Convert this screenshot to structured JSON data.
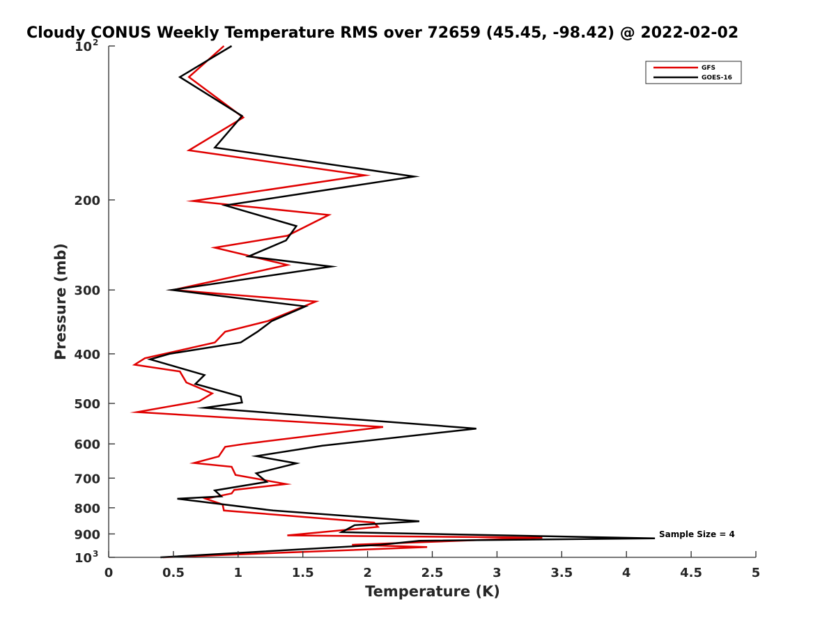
{
  "chart_data": {
    "type": "line",
    "title": "Cloudy CONUS Weekly Temperature RMS over 72659 (45.45, -98.42) @ 2022-02-02",
    "xlabel": "Temperature (K)",
    "ylabel": "Pressure (mb)",
    "xlim": [
      0,
      5
    ],
    "ylim": [
      100,
      1000
    ],
    "y_scale": "log",
    "y_reversed": true,
    "grid": false,
    "legend_position": "top-right",
    "x_ticks": [
      "0",
      "0.5",
      "1",
      "1.5",
      "2",
      "2.5",
      "3",
      "3.5",
      "4",
      "4.5",
      "5"
    ],
    "x_tick_values": [
      0,
      0.5,
      1,
      1.5,
      2,
      2.5,
      3,
      3.5,
      4,
      4.5,
      5
    ],
    "y_tick_values": [
      100,
      200,
      300,
      400,
      500,
      600,
      700,
      800,
      900,
      1000
    ],
    "y_ticks": [
      {
        "base": "10",
        "exp": "2"
      },
      {
        "base": "200",
        "exp": ""
      },
      {
        "base": "300",
        "exp": ""
      },
      {
        "base": "400",
        "exp": ""
      },
      {
        "base": "500",
        "exp": ""
      },
      {
        "base": "600",
        "exp": ""
      },
      {
        "base": "700",
        "exp": ""
      },
      {
        "base": "800",
        "exp": ""
      },
      {
        "base": "900",
        "exp": ""
      },
      {
        "base": "10",
        "exp": "3"
      }
    ],
    "series": [
      {
        "name": "GFS",
        "color": "#e00000",
        "points": [
          [
            0.89,
            100
          ],
          [
            0.62,
            115
          ],
          [
            1.04,
            138
          ],
          [
            0.62,
            160
          ],
          [
            1.98,
            179
          ],
          [
            0.65,
            201
          ],
          [
            1.7,
            214
          ],
          [
            1.38,
            235
          ],
          [
            0.82,
            248
          ],
          [
            1.38,
            268
          ],
          [
            0.5,
            300
          ],
          [
            1.6,
            316
          ],
          [
            1.23,
            345
          ],
          [
            0.9,
            362
          ],
          [
            0.82,
            380
          ],
          [
            0.28,
            408
          ],
          [
            0.2,
            420
          ],
          [
            0.55,
            433
          ],
          [
            0.6,
            455
          ],
          [
            0.8,
            478
          ],
          [
            0.7,
            495
          ],
          [
            0.22,
            520
          ],
          [
            2.12,
            556
          ],
          [
            1.05,
            600
          ],
          [
            0.9,
            608
          ],
          [
            0.85,
            635
          ],
          [
            0.66,
            654
          ],
          [
            0.95,
            665
          ],
          [
            0.98,
            690
          ],
          [
            1.37,
            719
          ],
          [
            0.97,
            738
          ],
          [
            0.95,
            750
          ],
          [
            0.75,
            768
          ],
          [
            0.88,
            788
          ],
          [
            0.89,
            810
          ],
          [
            2.05,
            855
          ],
          [
            2.08,
            872
          ],
          [
            1.38,
            906
          ],
          [
            3.35,
            915
          ],
          [
            1.88,
            945
          ],
          [
            2.46,
            955
          ],
          [
            0.42,
            1000
          ]
        ]
      },
      {
        "name": "GOES-16",
        "color": "#000000",
        "points": [
          [
            0.95,
            100
          ],
          [
            0.55,
            115
          ],
          [
            1.03,
            137
          ],
          [
            0.82,
            158
          ],
          [
            2.36,
            180
          ],
          [
            0.9,
            205
          ],
          [
            1.45,
            225
          ],
          [
            1.37,
            240
          ],
          [
            1.08,
            258
          ],
          [
            1.72,
            270
          ],
          [
            0.49,
            300
          ],
          [
            1.52,
            323
          ],
          [
            1.26,
            345
          ],
          [
            1.15,
            362
          ],
          [
            1.02,
            380
          ],
          [
            0.47,
            400
          ],
          [
            0.32,
            410
          ],
          [
            0.74,
            440
          ],
          [
            0.67,
            458
          ],
          [
            1.02,
            485
          ],
          [
            1.03,
            498
          ],
          [
            0.74,
            510
          ],
          [
            2.84,
            560
          ],
          [
            1.65,
            605
          ],
          [
            1.14,
            634
          ],
          [
            1.45,
            655
          ],
          [
            1.14,
            685
          ],
          [
            1.22,
            712
          ],
          [
            0.82,
            740
          ],
          [
            0.87,
            760
          ],
          [
            0.53,
            768
          ],
          [
            1.27,
            810
          ],
          [
            2.4,
            850
          ],
          [
            1.9,
            865
          ],
          [
            1.8,
            893
          ],
          [
            4.22,
            918
          ],
          [
            2.4,
            928
          ],
          [
            2.1,
            945
          ],
          [
            0.4,
            1000
          ]
        ]
      }
    ],
    "annotations": [
      {
        "text": "Sample Size = 4"
      }
    ]
  }
}
